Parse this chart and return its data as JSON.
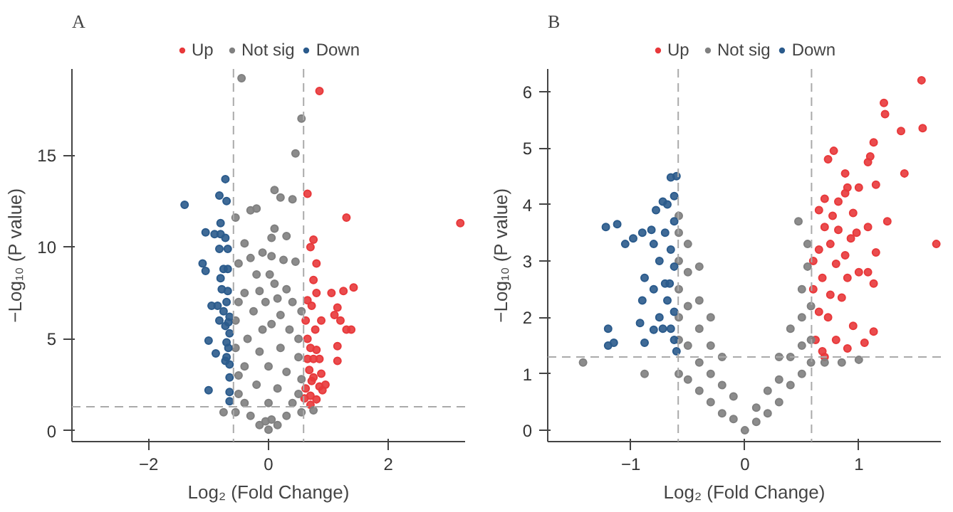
{
  "chart_data": [
    {
      "type": "scatter",
      "title": "A",
      "xlabel": "Log₂ (Fold Change)",
      "ylabel": "−Log₁₀ (P value)",
      "xlim": [
        -3.28,
        3.28
      ],
      "ylim": [
        -0.6,
        19.7
      ],
      "xticks": [
        -2,
        0,
        2
      ],
      "yticks": [
        0,
        5,
        10,
        15
      ],
      "legend": "top",
      "grid": false,
      "marker": "circle",
      "ref_lines": [
        {
          "axis": "x",
          "value": -0.585,
          "color": "#aaaaaa",
          "line_style": "dashed"
        },
        {
          "axis": "x",
          "value": 0.585,
          "color": "#aaaaaa",
          "line_style": "dashed"
        },
        {
          "axis": "y",
          "value": 1.3,
          "color": "#aaaaaa",
          "line_style": "dashed"
        }
      ],
      "series": [
        {
          "name": "Up",
          "color": "#e8393b",
          "x": [
            0.85,
            0.65,
            1.3,
            3.2,
            0.75,
            0.7,
            0.8,
            0.75,
            1.42,
            1.25,
            1.05,
            0.8,
            0.65,
            0.72,
            1.15,
            1.1,
            0.88,
            1.2,
            0.62,
            1.3,
            1.38,
            0.78,
            0.65,
            0.7,
            1.15,
            0.8,
            0.65,
            0.75,
            0.85,
            1.15,
            0.68,
            0.88,
            0.72,
            0.95,
            0.85,
            0.62,
            0.9,
            0.7,
            0.8,
            0.6,
            0.7,
            0.75
          ],
          "values": [
            18.5,
            12.9,
            11.6,
            11.3,
            10.4,
            10.0,
            9.1,
            8.2,
            7.8,
            7.6,
            7.5,
            7.5,
            7.1,
            6.8,
            6.7,
            6.3,
            6.0,
            6.0,
            6.0,
            5.5,
            5.5,
            5.5,
            5.0,
            4.5,
            4.6,
            4.4,
            3.9,
            3.9,
            3.9,
            3.8,
            3.3,
            3.1,
            2.7,
            2.5,
            2.4,
            2.3,
            2.2,
            1.9,
            1.7,
            1.75,
            1.4,
            2.9
          ]
        },
        {
          "name": "Not sig",
          "color": "#808080",
          "x": [
            -0.45,
            0.55,
            0.45,
            0.1,
            0.2,
            0.4,
            -0.55,
            -0.3,
            -0.2,
            0.1,
            0.05,
            0.3,
            -0.4,
            -0.1,
            0.05,
            -0.3,
            0.25,
            0.45,
            -0.5,
            -0.2,
            0.02,
            0.1,
            -0.15,
            0.3,
            -0.4,
            0.15,
            -0.05,
            -0.5,
            0.4,
            -0.25,
            0.2,
            0.55,
            -0.55,
            -0.1,
            0.05,
            0.35,
            -0.35,
            0.5,
            -0.55,
            -0.15,
            0.2,
            0.5,
            -0.4,
            0.0,
            0.3,
            -0.5,
            0.55,
            -0.2,
            0.15,
            -0.5,
            0.5,
            0.0,
            -0.4,
            0.4,
            -0.55,
            0.55,
            -0.75,
            0.75,
            -0.3,
            0.3,
            -0.15,
            0.15,
            0,
            -0.05,
            0.05
          ],
          "values": [
            19.2,
            17.0,
            15.1,
            13.1,
            12.7,
            12.6,
            11.6,
            12.0,
            12.1,
            11.0,
            10.5,
            10.6,
            10.2,
            9.7,
            9.5,
            9.4,
            9.3,
            9.2,
            9.1,
            8.5,
            8.5,
            8.0,
            7.6,
            7.7,
            7.5,
            7.2,
            7.0,
            7.0,
            7.0,
            6.5,
            6.3,
            6.5,
            6.0,
            5.5,
            5.8,
            5.5,
            5.0,
            5.0,
            4.5,
            4.3,
            4.5,
            4.0,
            3.5,
            3.5,
            3.2,
            3.0,
            2.8,
            2.5,
            2.3,
            2.0,
            2.0,
            1.5,
            1.5,
            1.5,
            1.0,
            1.0,
            1.0,
            1.1,
            0.8,
            0.8,
            0.3,
            0.3,
            0.05,
            0.5,
            0.6
          ]
        },
        {
          "name": "Down",
          "color": "#2b5b8c",
          "x": [
            -1.4,
            -0.72,
            -0.82,
            -0.7,
            -1.05,
            -0.9,
            -0.8,
            -0.8,
            -0.72,
            -0.82,
            -0.68,
            -1.1,
            -1.05,
            -0.75,
            -0.68,
            -0.8,
            -0.78,
            -0.68,
            -0.95,
            -0.85,
            -0.75,
            -0.65,
            -0.82,
            -0.72,
            -0.65,
            -1.0,
            -0.7,
            -0.88,
            -0.7,
            -0.65,
            -0.72,
            -0.65,
            -1.0,
            -0.65,
            -0.65,
            -0.7,
            -0.67,
            -0.67
          ],
          "values": [
            12.3,
            13.7,
            12.8,
            12.5,
            10.8,
            10.7,
            10.7,
            11.3,
            10.5,
            9.9,
            9.9,
            9.1,
            8.7,
            8.8,
            8.8,
            8.3,
            7.7,
            7.6,
            6.8,
            6.8,
            6.5,
            6.2,
            6.0,
            5.7,
            5.3,
            4.9,
            4.8,
            4.2,
            4.0,
            3.6,
            3.8,
            2.9,
            2.2,
            2.1,
            1.6,
            7.0,
            5.9,
            4.5
          ]
        }
      ]
    },
    {
      "type": "scatter",
      "title": "B",
      "xlabel": "Log₂ (Fold Change)",
      "ylabel": "−Log₁₀ (P value)",
      "xlim": [
        -1.73,
        1.72
      ],
      "ylim": [
        -0.2,
        6.4
      ],
      "xticks": [
        -1,
        0,
        1
      ],
      "yticks": [
        0,
        1,
        2,
        3,
        4,
        5,
        6
      ],
      "legend": "top",
      "grid": false,
      "marker": "circle",
      "ref_lines": [
        {
          "axis": "x",
          "value": -0.585,
          "color": "#aaaaaa",
          "line_style": "dashed"
        },
        {
          "axis": "x",
          "value": 0.585,
          "color": "#aaaaaa",
          "line_style": "dashed"
        },
        {
          "axis": "y",
          "value": 1.3,
          "color": "#aaaaaa",
          "line_style": "dashed"
        }
      ],
      "series": [
        {
          "name": "Up",
          "color": "#e8393b",
          "x": [
            1.55,
            1.22,
            1.23,
            1.37,
            1.56,
            1.13,
            0.78,
            1.1,
            0.73,
            1.08,
            0.88,
            1.4,
            0.9,
            1.0,
            1.15,
            0.88,
            0.7,
            0.82,
            0.65,
            0.95,
            1.25,
            0.77,
            0.7,
            0.82,
            0.98,
            1.08,
            1.68,
            0.93,
            0.75,
            0.65,
            0.88,
            1.15,
            0.6,
            0.8,
            0.68,
            0.9,
            1.0,
            1.08,
            0.6,
            0.75,
            0.85,
            1.13,
            0.65,
            0.73,
            0.95,
            1.13,
            0.8,
            0.9,
            1.05,
            0.62,
            0.68,
            0.7
          ],
          "values": [
            6.2,
            5.8,
            5.6,
            5.3,
            5.35,
            5.1,
            4.95,
            4.85,
            4.8,
            4.75,
            4.55,
            4.55,
            4.3,
            4.3,
            4.35,
            4.2,
            4.1,
            4.05,
            3.9,
            3.85,
            3.7,
            3.8,
            3.6,
            3.55,
            3.5,
            3.6,
            3.3,
            3.4,
            3.3,
            3.2,
            3.1,
            3.15,
            3.0,
            2.95,
            2.7,
            2.7,
            2.8,
            2.8,
            2.5,
            2.4,
            2.35,
            2.6,
            2.1,
            2.0,
            1.85,
            1.75,
            1.6,
            1.45,
            1.55,
            1.6,
            1.4,
            1.3
          ]
        },
        {
          "name": "Not sig",
          "color": "#808080",
          "x": [
            -1.42,
            -0.88,
            -0.58,
            -0.58,
            -0.58,
            -0.58,
            -0.58,
            -0.58,
            -0.58,
            -0.5,
            -0.5,
            -0.5,
            -0.5,
            -0.5,
            -0.4,
            -0.4,
            -0.4,
            -0.4,
            -0.4,
            -0.3,
            -0.3,
            -0.3,
            -0.3,
            -0.2,
            -0.2,
            -0.2,
            -0.1,
            -0.1,
            0,
            0.1,
            0.1,
            0.2,
            0.2,
            0.3,
            0.3,
            0.3,
            0.4,
            0.4,
            0.4,
            0.5,
            0.5,
            0.5,
            0.5,
            0.55,
            0.55,
            0.47,
            0.58,
            0.58,
            0.58,
            0.7,
            0.85,
            1.0
          ],
          "values": [
            1.2,
            1.0,
            3.8,
            3.5,
            3.0,
            2.5,
            2.0,
            1.6,
            1.0,
            3.3,
            2.8,
            2.2,
            1.5,
            0.9,
            2.9,
            2.3,
            1.8,
            1.2,
            0.7,
            2.0,
            1.5,
            1.0,
            0.5,
            1.3,
            0.8,
            0.3,
            0.6,
            0.2,
            0.0,
            0.4,
            0.15,
            0.7,
            0.3,
            1.3,
            0.9,
            0.5,
            1.8,
            1.3,
            0.8,
            2.5,
            2.0,
            1.5,
            1.0,
            2.9,
            3.3,
            3.7,
            2.2,
            1.6,
            1.2,
            1.2,
            1.2,
            1.25
          ]
        },
        {
          "name": "Down",
          "color": "#2b5b8c",
          "x": [
            -1.22,
            -1.12,
            -1.05,
            -0.98,
            -0.9,
            -0.82,
            -0.78,
            -0.72,
            -0.68,
            -0.62,
            -0.6,
            -0.65,
            -0.8,
            -0.7,
            -0.62,
            -0.75,
            -0.65,
            -0.88,
            -0.8,
            -0.7,
            -0.62,
            -0.9,
            -0.68,
            -0.75,
            -0.62,
            -0.92,
            -0.8,
            -0.72,
            -0.65,
            -1.2,
            -1.15,
            -1.2,
            -0.88,
            -0.62,
            -0.6,
            -0.66
          ],
          "values": [
            3.6,
            3.65,
            3.3,
            3.4,
            3.5,
            3.55,
            3.9,
            4.05,
            4.0,
            4.15,
            4.5,
            4.48,
            3.3,
            3.5,
            3.7,
            3.0,
            3.2,
            2.7,
            2.5,
            2.6,
            2.9,
            2.3,
            2.3,
            2.0,
            2.1,
            1.9,
            1.78,
            1.8,
            1.8,
            1.8,
            1.55,
            1.5,
            1.55,
            1.6,
            1.4,
            2.6
          ]
        }
      ]
    }
  ]
}
